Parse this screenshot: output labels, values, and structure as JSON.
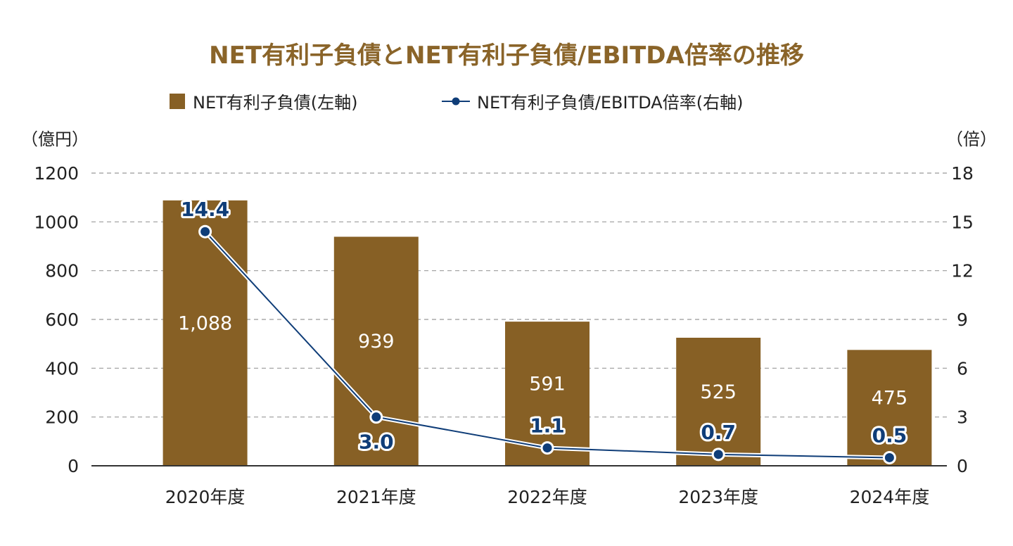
{
  "chart_data": {
    "type": "bar",
    "title": "NET有利子負債とNET有利子負債/EBITDA倍率の推移",
    "categories": [
      "2020年度",
      "2021年度",
      "2022年度",
      "2023年度",
      "2024年度"
    ],
    "series": [
      {
        "name": "NET有利子負債(左軸)",
        "type": "bar",
        "axis": "left",
        "values": [
          1088,
          939,
          591,
          525,
          475
        ],
        "value_labels": [
          "1,088",
          "939",
          "591",
          "525",
          "475"
        ]
      },
      {
        "name": "NET有利子負債/EBITDA倍率(右軸)",
        "type": "line",
        "axis": "right",
        "values": [
          14.4,
          3.0,
          1.1,
          0.7,
          0.5
        ],
        "value_labels": [
          "14.4",
          "3.0",
          "1.1",
          "0.7",
          "0.5"
        ],
        "label_position": [
          "above",
          "below",
          "above",
          "above",
          "above"
        ]
      }
    ],
    "y_left": {
      "unit_label": "（億円）",
      "range": [
        0,
        1200
      ],
      "ticks": [
        "0",
        "200",
        "400",
        "600",
        "800",
        "1000",
        "1200"
      ]
    },
    "y_right": {
      "unit_label": "（倍）",
      "range": [
        0,
        18
      ],
      "ticks": [
        "0",
        "3",
        "6",
        "9",
        "12",
        "15",
        "18"
      ]
    },
    "grid": true,
    "legend_position": "top-center"
  },
  "colors": {
    "title": "#8a6429",
    "bar": "#876025",
    "line": "#0f3d78",
    "grid": "#999999",
    "axis": "#333333",
    "text": "#222222",
    "bar_label": "#ffffff"
  }
}
